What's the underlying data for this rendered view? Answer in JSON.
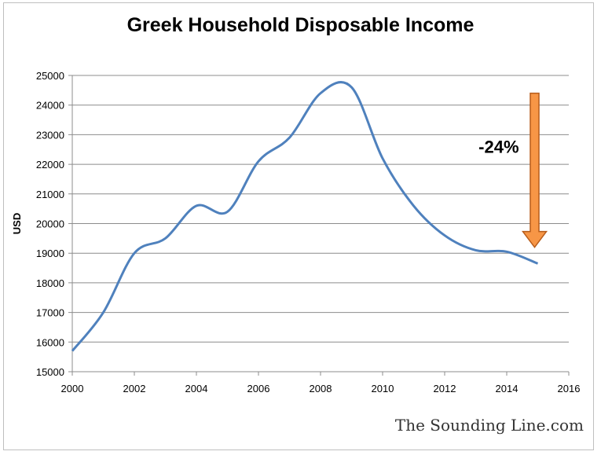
{
  "chart_data": {
    "type": "line",
    "title": "Greek Household Disposable Income",
    "xlabel": "",
    "ylabel": "USD",
    "xlim": [
      2000,
      2016
    ],
    "ylim": [
      15000,
      25000
    ],
    "x_ticks": [
      2000,
      2002,
      2004,
      2006,
      2008,
      2010,
      2012,
      2014,
      2016
    ],
    "y_ticks": [
      15000,
      16000,
      17000,
      18000,
      19000,
      20000,
      21000,
      22000,
      23000,
      24000,
      25000
    ],
    "grid": "horizontal",
    "series": [
      {
        "color": "#4f81bd",
        "x": [
          2000,
          2001,
          2002,
          2003,
          2004,
          2005,
          2006,
          2007,
          2008,
          2009,
          2010,
          2011,
          2012,
          2013,
          2014,
          2015
        ],
        "values": [
          15700,
          17000,
          19000,
          19500,
          20600,
          20400,
          22100,
          22900,
          24400,
          24600,
          22200,
          20600,
          19600,
          19100,
          19050,
          18650
        ]
      }
    ],
    "annotation": {
      "text": "-24%",
      "arrow_color": "#f79646",
      "arrow_from": 24400,
      "arrow_to": 19200,
      "arrow_x": 2015
    }
  },
  "credit": "The Sounding Line.com"
}
